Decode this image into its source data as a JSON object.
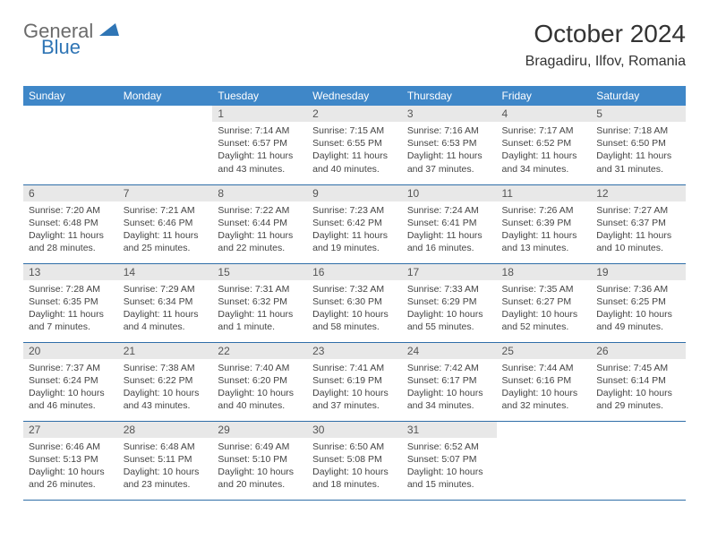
{
  "logo": {
    "general": "General",
    "blue": "Blue"
  },
  "title": "October 2024",
  "location": "Bragadiru, Ilfov, Romania",
  "colors": {
    "header_bg": "#3f87c8",
    "header_text": "#ffffff",
    "daynum_bg": "#e8e8e8",
    "row_border": "#2f6ea8",
    "logo_gray": "#6b6b6b",
    "logo_blue": "#2f75b5"
  },
  "day_headers": [
    "Sunday",
    "Monday",
    "Tuesday",
    "Wednesday",
    "Thursday",
    "Friday",
    "Saturday"
  ],
  "weeks": [
    [
      null,
      null,
      {
        "n": "1",
        "sr": "Sunrise: 7:14 AM",
        "ss": "Sunset: 6:57 PM",
        "dl": "Daylight: 11 hours and 43 minutes."
      },
      {
        "n": "2",
        "sr": "Sunrise: 7:15 AM",
        "ss": "Sunset: 6:55 PM",
        "dl": "Daylight: 11 hours and 40 minutes."
      },
      {
        "n": "3",
        "sr": "Sunrise: 7:16 AM",
        "ss": "Sunset: 6:53 PM",
        "dl": "Daylight: 11 hours and 37 minutes."
      },
      {
        "n": "4",
        "sr": "Sunrise: 7:17 AM",
        "ss": "Sunset: 6:52 PM",
        "dl": "Daylight: 11 hours and 34 minutes."
      },
      {
        "n": "5",
        "sr": "Sunrise: 7:18 AM",
        "ss": "Sunset: 6:50 PM",
        "dl": "Daylight: 11 hours and 31 minutes."
      }
    ],
    [
      {
        "n": "6",
        "sr": "Sunrise: 7:20 AM",
        "ss": "Sunset: 6:48 PM",
        "dl": "Daylight: 11 hours and 28 minutes."
      },
      {
        "n": "7",
        "sr": "Sunrise: 7:21 AM",
        "ss": "Sunset: 6:46 PM",
        "dl": "Daylight: 11 hours and 25 minutes."
      },
      {
        "n": "8",
        "sr": "Sunrise: 7:22 AM",
        "ss": "Sunset: 6:44 PM",
        "dl": "Daylight: 11 hours and 22 minutes."
      },
      {
        "n": "9",
        "sr": "Sunrise: 7:23 AM",
        "ss": "Sunset: 6:42 PM",
        "dl": "Daylight: 11 hours and 19 minutes."
      },
      {
        "n": "10",
        "sr": "Sunrise: 7:24 AM",
        "ss": "Sunset: 6:41 PM",
        "dl": "Daylight: 11 hours and 16 minutes."
      },
      {
        "n": "11",
        "sr": "Sunrise: 7:26 AM",
        "ss": "Sunset: 6:39 PM",
        "dl": "Daylight: 11 hours and 13 minutes."
      },
      {
        "n": "12",
        "sr": "Sunrise: 7:27 AM",
        "ss": "Sunset: 6:37 PM",
        "dl": "Daylight: 11 hours and 10 minutes."
      }
    ],
    [
      {
        "n": "13",
        "sr": "Sunrise: 7:28 AM",
        "ss": "Sunset: 6:35 PM",
        "dl": "Daylight: 11 hours and 7 minutes."
      },
      {
        "n": "14",
        "sr": "Sunrise: 7:29 AM",
        "ss": "Sunset: 6:34 PM",
        "dl": "Daylight: 11 hours and 4 minutes."
      },
      {
        "n": "15",
        "sr": "Sunrise: 7:31 AM",
        "ss": "Sunset: 6:32 PM",
        "dl": "Daylight: 11 hours and 1 minute."
      },
      {
        "n": "16",
        "sr": "Sunrise: 7:32 AM",
        "ss": "Sunset: 6:30 PM",
        "dl": "Daylight: 10 hours and 58 minutes."
      },
      {
        "n": "17",
        "sr": "Sunrise: 7:33 AM",
        "ss": "Sunset: 6:29 PM",
        "dl": "Daylight: 10 hours and 55 minutes."
      },
      {
        "n": "18",
        "sr": "Sunrise: 7:35 AM",
        "ss": "Sunset: 6:27 PM",
        "dl": "Daylight: 10 hours and 52 minutes."
      },
      {
        "n": "19",
        "sr": "Sunrise: 7:36 AM",
        "ss": "Sunset: 6:25 PM",
        "dl": "Daylight: 10 hours and 49 minutes."
      }
    ],
    [
      {
        "n": "20",
        "sr": "Sunrise: 7:37 AM",
        "ss": "Sunset: 6:24 PM",
        "dl": "Daylight: 10 hours and 46 minutes."
      },
      {
        "n": "21",
        "sr": "Sunrise: 7:38 AM",
        "ss": "Sunset: 6:22 PM",
        "dl": "Daylight: 10 hours and 43 minutes."
      },
      {
        "n": "22",
        "sr": "Sunrise: 7:40 AM",
        "ss": "Sunset: 6:20 PM",
        "dl": "Daylight: 10 hours and 40 minutes."
      },
      {
        "n": "23",
        "sr": "Sunrise: 7:41 AM",
        "ss": "Sunset: 6:19 PM",
        "dl": "Daylight: 10 hours and 37 minutes."
      },
      {
        "n": "24",
        "sr": "Sunrise: 7:42 AM",
        "ss": "Sunset: 6:17 PM",
        "dl": "Daylight: 10 hours and 34 minutes."
      },
      {
        "n": "25",
        "sr": "Sunrise: 7:44 AM",
        "ss": "Sunset: 6:16 PM",
        "dl": "Daylight: 10 hours and 32 minutes."
      },
      {
        "n": "26",
        "sr": "Sunrise: 7:45 AM",
        "ss": "Sunset: 6:14 PM",
        "dl": "Daylight: 10 hours and 29 minutes."
      }
    ],
    [
      {
        "n": "27",
        "sr": "Sunrise: 6:46 AM",
        "ss": "Sunset: 5:13 PM",
        "dl": "Daylight: 10 hours and 26 minutes."
      },
      {
        "n": "28",
        "sr": "Sunrise: 6:48 AM",
        "ss": "Sunset: 5:11 PM",
        "dl": "Daylight: 10 hours and 23 minutes."
      },
      {
        "n": "29",
        "sr": "Sunrise: 6:49 AM",
        "ss": "Sunset: 5:10 PM",
        "dl": "Daylight: 10 hours and 20 minutes."
      },
      {
        "n": "30",
        "sr": "Sunrise: 6:50 AM",
        "ss": "Sunset: 5:08 PM",
        "dl": "Daylight: 10 hours and 18 minutes."
      },
      {
        "n": "31",
        "sr": "Sunrise: 6:52 AM",
        "ss": "Sunset: 5:07 PM",
        "dl": "Daylight: 10 hours and 15 minutes."
      },
      null,
      null
    ]
  ]
}
